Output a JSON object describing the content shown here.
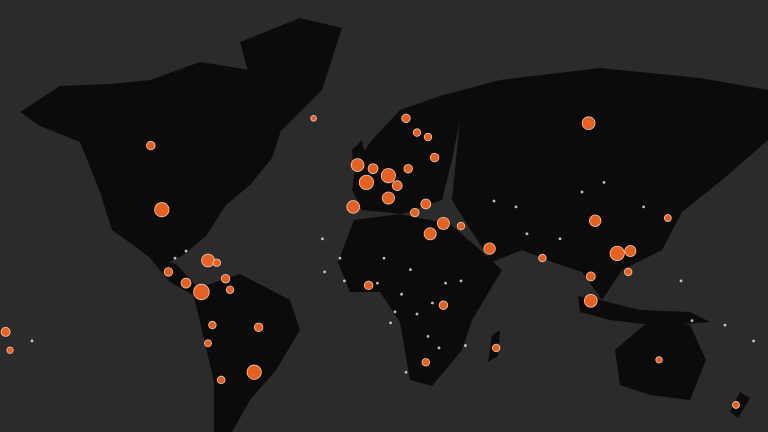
{
  "map": {
    "type": "bubble-map",
    "projection": "mercator",
    "background_color": "#2b2b2b",
    "land_color": "#0b0b0b",
    "point_color": "#f26522",
    "point_stroke": "#ffd2b8",
    "minor_point_color": "#ead9cc",
    "points": [
      {
        "lon": -91,
        "lat": 39,
        "value": 2500
      },
      {
        "lon": -96,
        "lat": 58,
        "value": 900
      },
      {
        "lon": -70,
        "lat": 19,
        "value": 2000
      },
      {
        "lon": -73,
        "lat": 5,
        "value": 3000
      },
      {
        "lon": -88,
        "lat": 14,
        "value": 900
      },
      {
        "lon": -80,
        "lat": 9,
        "value": 1200
      },
      {
        "lon": -62,
        "lat": 11,
        "value": 900
      },
      {
        "lon": -66,
        "lat": 18,
        "value": 700
      },
      {
        "lon": -60,
        "lat": 6,
        "value": 700
      },
      {
        "lon": -47,
        "lat": -11,
        "value": 900
      },
      {
        "lon": -68,
        "lat": -10,
        "value": 700
      },
      {
        "lon": -49,
        "lat": -30,
        "value": 2500
      },
      {
        "lon": -64,
        "lat": -33,
        "value": 700
      },
      {
        "lon": -70,
        "lat": -18,
        "value": 600
      },
      {
        "lon": -162,
        "lat": -13,
        "value": 1000
      },
      {
        "lon": -160,
        "lat": -21,
        "value": 500
      },
      {
        "lon": -2,
        "lat": 53,
        "value": 2000
      },
      {
        "lon": 2,
        "lat": 48,
        "value": 2500
      },
      {
        "lon": 12,
        "lat": 50,
        "value": 2500
      },
      {
        "lon": -4,
        "lat": 40,
        "value": 2000
      },
      {
        "lon": 12,
        "lat": 43,
        "value": 1800
      },
      {
        "lon": 5,
        "lat": 52,
        "value": 1200
      },
      {
        "lon": 16,
        "lat": 47,
        "value": 1200
      },
      {
        "lon": 21,
        "lat": 52,
        "value": 900
      },
      {
        "lon": 25,
        "lat": 61,
        "value": 700
      },
      {
        "lon": 20,
        "lat": 64,
        "value": 900
      },
      {
        "lon": 30,
        "lat": 60,
        "value": 700
      },
      {
        "lon": 33,
        "lat": 55,
        "value": 900
      },
      {
        "lon": 24,
        "lat": 38,
        "value": 900
      },
      {
        "lon": 29,
        "lat": 41,
        "value": 1200
      },
      {
        "lon": -22,
        "lat": 64,
        "value": 400
      },
      {
        "lon": 103,
        "lat": 63,
        "value": 2000
      },
      {
        "lon": 37,
        "lat": 34,
        "value": 1800
      },
      {
        "lon": 58,
        "lat": 24,
        "value": 1600
      },
      {
        "lon": 45,
        "lat": 33,
        "value": 700
      },
      {
        "lon": 106,
        "lat": 35,
        "value": 1600
      },
      {
        "lon": 116,
        "lat": 22,
        "value": 2500
      },
      {
        "lon": 122,
        "lat": 23,
        "value": 1500
      },
      {
        "lon": 104,
        "lat": 12,
        "value": 1000
      },
      {
        "lon": 104,
        "lat": 1,
        "value": 2000
      },
      {
        "lon": 82,
        "lat": 20,
        "value": 700
      },
      {
        "lon": 139,
        "lat": 36,
        "value": 600
      },
      {
        "lon": 121,
        "lat": 14,
        "value": 700
      },
      {
        "lon": 3,
        "lat": 8,
        "value": 900
      },
      {
        "lon": 31,
        "lat": 30,
        "value": 1800
      },
      {
        "lon": 37,
        "lat": -1,
        "value": 900
      },
      {
        "lon": 61,
        "lat": -20,
        "value": 700
      },
      {
        "lon": 29,
        "lat": -26,
        "value": 700
      },
      {
        "lon": 135,
        "lat": -25,
        "value": 500
      },
      {
        "lon": 170,
        "lat": -42,
        "value": 600
      }
    ],
    "minor_points": [
      {
        "lon": -17,
        "lat": 14
      },
      {
        "lon": -8,
        "lat": 10
      },
      {
        "lon": 7,
        "lat": 9
      },
      {
        "lon": 18,
        "lat": 4
      },
      {
        "lon": 32,
        "lat": 0
      },
      {
        "lon": 38,
        "lat": 9
      },
      {
        "lon": 13,
        "lat": -9
      },
      {
        "lon": 15,
        "lat": -4
      },
      {
        "lon": 30,
        "lat": -15
      },
      {
        "lon": 47,
        "lat": -19
      },
      {
        "lon": 22,
        "lat": 15
      },
      {
        "lon": 10,
        "lat": 20
      },
      {
        "lon": 25,
        "lat": -5
      },
      {
        "lon": 35,
        "lat": -20
      },
      {
        "lon": 20,
        "lat": -30
      },
      {
        "lon": 45,
        "lat": 10
      },
      {
        "lon": 70,
        "lat": 40
      },
      {
        "lon": 60,
        "lat": 42
      },
      {
        "lon": 75,
        "lat": 30
      },
      {
        "lon": 90,
        "lat": 28
      },
      {
        "lon": 100,
        "lat": 45
      },
      {
        "lon": 110,
        "lat": 48
      },
      {
        "lon": 128,
        "lat": 40
      },
      {
        "lon": 150,
        "lat": -8
      },
      {
        "lon": 165,
        "lat": -10
      },
      {
        "lon": 178,
        "lat": -17
      },
      {
        "lon": 145,
        "lat": 10
      },
      {
        "lon": -150,
        "lat": -17
      },
      {
        "lon": -18,
        "lat": 28
      },
      {
        "lon": -10,
        "lat": 20
      },
      {
        "lon": -80,
        "lat": 23
      },
      {
        "lon": -85,
        "lat": 20
      }
    ]
  }
}
